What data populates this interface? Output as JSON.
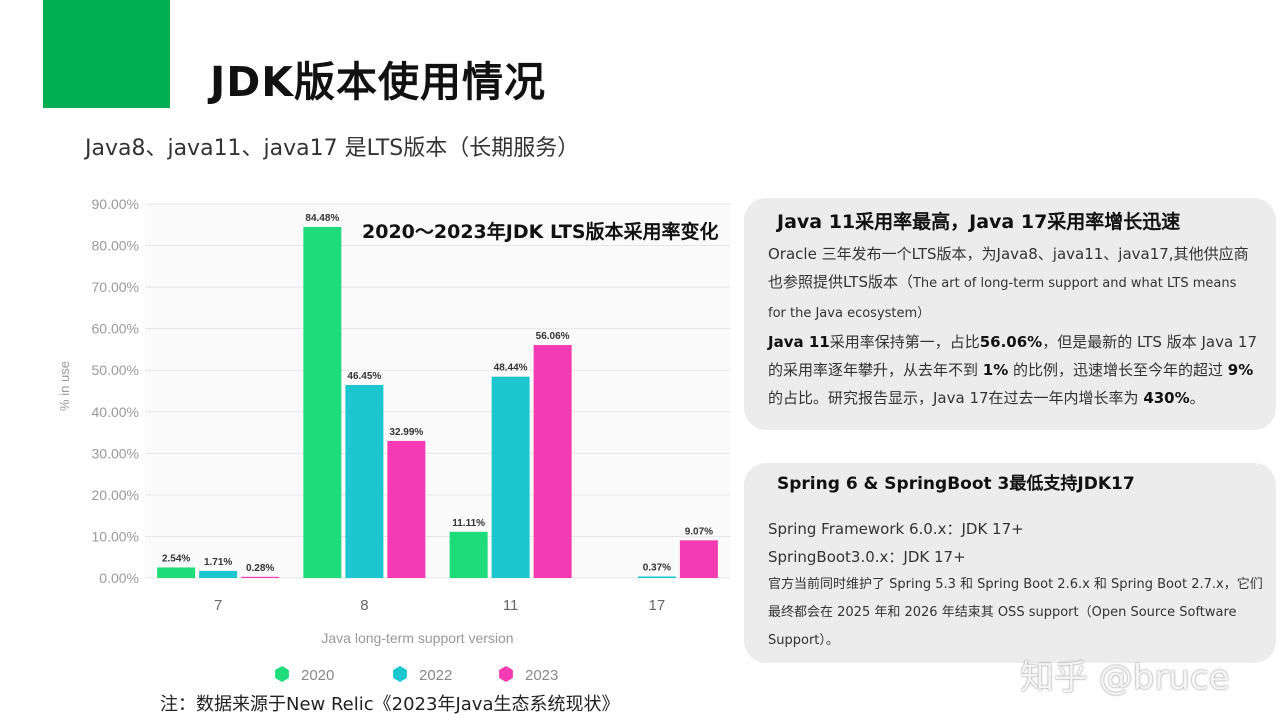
{
  "slide": {
    "title": "JDK版本使用情况",
    "subtitle": "Java8、java11、java17 是LTS版本（长期服务）",
    "accent_color": "#00b050",
    "source_note": "注：数据来源于New Relic《2023年Java生态系统现状》",
    "watermark": "知乎 @bruce"
  },
  "card1": {
    "heading": "Java 11采用率最高，Java 17采用率增长迅速",
    "p1_a": "Oracle 三年发布一个LTS版本，为Java8、java11、java17,其他供应商也参照提供LTS版本（",
    "p1_b": "The art of long-term support and what LTS means for the Java ecosystem）",
    "p2_1": "Java 11",
    "p2_2": "采用率保持第一，占比",
    "p2_3": "56.06%",
    "p2_4": "，但是最新的 LTS 版本 Java 17 的采用率逐年攀升，从去年不到 ",
    "p2_5": "1%",
    "p2_6": " 的比例，迅速增长至今年的超过 ",
    "p2_7": "9%",
    "p2_8": " 的占比。研究报告显示，Java 17在过去一年内增长率为 ",
    "p2_9": "430%",
    "p2_10": "。"
  },
  "card2": {
    "heading": "Spring 6 & SpringBoot  3最低支持JDK17",
    "line1": "Spring Framework 6.0.x：JDK 17+",
    "line2": "SpringBoot3.0.x：JDK 17+",
    "line3": "官方当前同时维护了 Spring 5.3 和 Spring Boot 2.6.x 和 Spring Boot 2.7.x，它们最终都会在 2025 年和 2026 年结束其 OSS support（Open Source Software Support）。"
  },
  "chart_data": {
    "type": "bar",
    "title": "2020～2023年JDK LTS版本采用率变化",
    "xlabel": "Java long-term support version",
    "ylabel": "% in use",
    "categories": [
      "7",
      "8",
      "11",
      "17"
    ],
    "ylim": [
      0,
      90
    ],
    "yticks": [
      "0.00%",
      "10.00%",
      "20.00%",
      "30.00%",
      "40.00%",
      "50.00%",
      "60.00%",
      "70.00%",
      "80.00%",
      "90.00%"
    ],
    "grid": true,
    "legend_position": "bottom",
    "series": [
      {
        "name": "2020",
        "color": "#1fdc7a",
        "values": [
          2.54,
          84.48,
          11.11,
          null
        ],
        "labels": [
          "2.54%",
          "84.48%",
          "11.11%",
          ""
        ]
      },
      {
        "name": "2022",
        "color": "#1cc6cf",
        "values": [
          1.71,
          46.45,
          48.44,
          0.37
        ],
        "labels": [
          "1.71%",
          "46.45%",
          "48.44%",
          "0.37%"
        ]
      },
      {
        "name": "2023",
        "color": "#f53bb4",
        "values": [
          0.28,
          32.99,
          56.06,
          9.07
        ],
        "labels": [
          "0.28%",
          "32.99%",
          "56.06%",
          "9.07%"
        ]
      }
    ]
  }
}
